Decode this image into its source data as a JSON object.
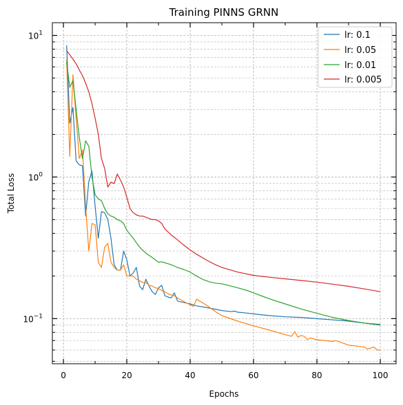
{
  "chart_data": {
    "type": "line",
    "title": "Training PINNS GRNN",
    "xlabel": "Epochs",
    "ylabel": "Total Loss",
    "xlim": [
      -3.5,
      105
    ],
    "ylim": [
      0.048,
      12.3
    ],
    "y_scale": "log",
    "grid": "both",
    "legend_position": "top-right",
    "x_ticks": [
      "0",
      "20",
      "40",
      "60",
      "80",
      "100"
    ],
    "y_ticks": [
      {
        "mantissa": "10",
        "exponent": "1",
        "value": 10
      },
      {
        "mantissa": "10",
        "exponent": "0",
        "value": 1
      },
      {
        "mantissa": "10",
        "exponent": "−1",
        "value": 0.1
      }
    ],
    "series": [
      {
        "name": "lr: 0.1",
        "color": "#1f77b4",
        "x": [
          1,
          2,
          3,
          4,
          5,
          6,
          7,
          8,
          9,
          10,
          11,
          12,
          13,
          14,
          15,
          16,
          17,
          18,
          19,
          20,
          21,
          22,
          23,
          24,
          25,
          26,
          27,
          28,
          29,
          30,
          31,
          32,
          33,
          34,
          35,
          36,
          38,
          40,
          42,
          45,
          50,
          53,
          54,
          55,
          57,
          60,
          65,
          70,
          75,
          80,
          85,
          90,
          95,
          100
        ],
        "y": [
          8.5,
          2.4,
          3.1,
          1.3,
          1.22,
          1.2,
          0.53,
          0.93,
          1.1,
          0.62,
          0.37,
          0.57,
          0.56,
          0.5,
          0.37,
          0.24,
          0.22,
          0.22,
          0.3,
          0.26,
          0.2,
          0.21,
          0.23,
          0.17,
          0.16,
          0.19,
          0.17,
          0.155,
          0.148,
          0.165,
          0.172,
          0.145,
          0.142,
          0.14,
          0.152,
          0.133,
          0.13,
          0.127,
          0.123,
          0.12,
          0.114,
          0.112,
          0.113,
          0.111,
          0.11,
          0.108,
          0.105,
          0.103,
          0.102,
          0.1,
          0.098,
          0.096,
          0.093,
          0.091
        ]
      },
      {
        "name": "lr: 0.05",
        "color": "#ff7f0e",
        "x": [
          1,
          2,
          3,
          4,
          5,
          6,
          7,
          8,
          9,
          10,
          11,
          12,
          13,
          14,
          15,
          16,
          17,
          18,
          19,
          20,
          21,
          22,
          23,
          24,
          25,
          26,
          27,
          28,
          29,
          30,
          31,
          32,
          33,
          34,
          35,
          36,
          38,
          40,
          41,
          42,
          45,
          48,
          50,
          55,
          60,
          65,
          70,
          72,
          73,
          74,
          75,
          76,
          77,
          78,
          80,
          85,
          86,
          90,
          95,
          96,
          98,
          99,
          100
        ],
        "y": [
          6.8,
          1.4,
          5.3,
          2.6,
          1.35,
          1.55,
          0.62,
          0.3,
          0.47,
          0.46,
          0.25,
          0.23,
          0.32,
          0.34,
          0.25,
          0.23,
          0.22,
          0.22,
          0.24,
          0.2,
          0.2,
          0.2,
          0.19,
          0.185,
          0.18,
          0.18,
          0.172,
          0.17,
          0.165,
          0.163,
          0.158,
          0.155,
          0.15,
          0.147,
          0.145,
          0.14,
          0.132,
          0.125,
          0.122,
          0.137,
          0.125,
          0.112,
          0.105,
          0.096,
          0.089,
          0.083,
          0.077,
          0.075,
          0.081,
          0.074,
          0.076,
          0.075,
          0.071,
          0.073,
          0.071,
          0.069,
          0.07,
          0.065,
          0.063,
          0.061,
          0.063,
          0.06,
          0.06
        ]
      },
      {
        "name": "lr: 0.01",
        "color": "#2ca02c",
        "x": [
          1,
          2,
          3,
          4,
          5,
          6,
          7,
          8,
          9,
          10,
          11,
          12,
          13,
          14,
          15,
          16,
          17,
          18,
          19,
          20,
          22,
          24,
          26,
          28,
          30,
          31,
          32,
          34,
          36,
          38,
          40,
          42,
          44,
          46,
          48,
          50,
          52,
          55,
          58,
          60,
          65,
          70,
          75,
          80,
          85,
          90,
          95,
          100
        ],
        "y": [
          6.5,
          4.3,
          4.8,
          3.0,
          1.9,
          1.35,
          1.8,
          1.65,
          1.0,
          0.75,
          0.7,
          0.68,
          0.6,
          0.55,
          0.53,
          0.52,
          0.5,
          0.49,
          0.47,
          0.42,
          0.37,
          0.32,
          0.29,
          0.27,
          0.25,
          0.252,
          0.248,
          0.24,
          0.23,
          0.222,
          0.213,
          0.2,
          0.189,
          0.182,
          0.178,
          0.176,
          0.172,
          0.165,
          0.158,
          0.152,
          0.138,
          0.127,
          0.117,
          0.109,
          0.102,
          0.097,
          0.093,
          0.09
        ]
      },
      {
        "name": "lr: 0.005",
        "color": "#d62728",
        "x": [
          1,
          2,
          3,
          4,
          5,
          6,
          7,
          8,
          9,
          10,
          11,
          12,
          13,
          14,
          15,
          16,
          17,
          18,
          19,
          20,
          21,
          22,
          23,
          24,
          25,
          26,
          27,
          28,
          29,
          30,
          31,
          32,
          34,
          36,
          38,
          40,
          42,
          45,
          48,
          50,
          55,
          60,
          65,
          70,
          75,
          80,
          85,
          90,
          95,
          100
        ],
        "y": [
          7.8,
          7.3,
          6.8,
          6.3,
          5.7,
          5.2,
          4.6,
          4.0,
          3.3,
          2.6,
          2.0,
          1.35,
          1.15,
          0.85,
          0.92,
          0.9,
          1.05,
          0.95,
          0.85,
          0.72,
          0.6,
          0.56,
          0.54,
          0.53,
          0.53,
          0.52,
          0.51,
          0.5,
          0.5,
          0.49,
          0.47,
          0.43,
          0.39,
          0.36,
          0.33,
          0.305,
          0.285,
          0.26,
          0.24,
          0.23,
          0.213,
          0.202,
          0.196,
          0.191,
          0.186,
          0.181,
          0.175,
          0.169,
          0.162,
          0.155
        ]
      }
    ]
  }
}
